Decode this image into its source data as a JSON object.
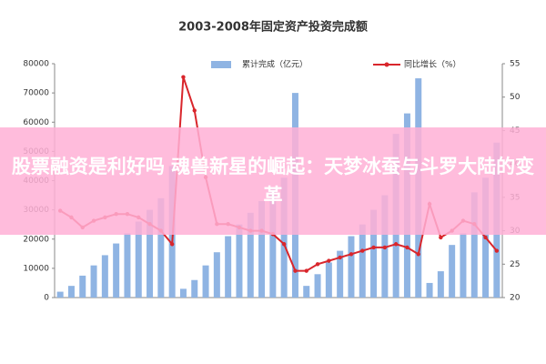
{
  "chart_data": {
    "type": "bar-line",
    "title": "2003-2008年固定资产投资完成额",
    "categories": [
      null,
      null,
      null,
      null,
      null,
      null,
      null,
      null,
      null,
      null,
      null,
      null,
      null,
      null,
      null,
      null,
      null,
      null,
      null,
      null,
      null,
      null,
      null,
      null,
      null,
      null,
      null,
      null,
      null,
      null,
      null,
      null,
      null,
      null,
      null,
      null,
      null,
      null,
      null,
      null
    ],
    "series": [
      {
        "name": "累计完成（亿元）",
        "color": "#8fb4e3",
        "type": "bar",
        "values": [
          2000,
          4000,
          7500,
          11000,
          14500,
          18500,
          22000,
          26000,
          30000,
          34000,
          45000,
          3000,
          6000,
          11000,
          15500,
          21000,
          25000,
          29000,
          33000,
          37000,
          41000,
          70000,
          4000,
          8000,
          12000,
          16000,
          21000,
          25000,
          30000,
          35000,
          56000,
          63000,
          75000,
          5000,
          9000,
          18000,
          22000,
          36000,
          41000,
          53000
        ]
      },
      {
        "name": "同比增长（%）",
        "color": "#d9262c",
        "type": "line",
        "axis": "y2",
        "values": [
          33,
          32,
          30.5,
          31.5,
          32,
          32.5,
          32.5,
          32,
          31,
          30,
          28,
          53,
          48,
          38,
          31,
          31,
          30.5,
          30,
          30,
          29.5,
          28,
          24,
          24,
          25,
          25.5,
          26,
          26.5,
          27,
          27.5,
          27.5,
          28,
          27.5,
          26.5,
          34,
          29,
          30,
          31.5,
          31,
          29,
          27
        ]
      }
    ],
    "ylim": [
      0,
      80000
    ],
    "yticks": [
      0,
      10000,
      20000,
      30000,
      40000,
      50000,
      60000,
      70000,
      80000
    ],
    "y2lim": [
      20,
      55
    ],
    "y2ticks": [
      20,
      25,
      30,
      35,
      40,
      45,
      50,
      55
    ]
  },
  "banner": {
    "text": "股票融资是利好吗 魂兽新星的崛起：天梦冰蚕与斗罗大陆的变革"
  }
}
